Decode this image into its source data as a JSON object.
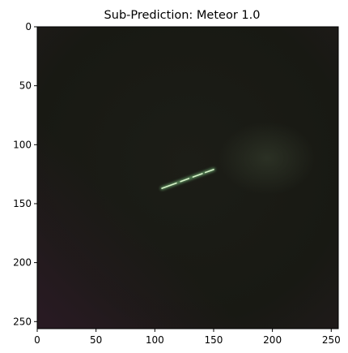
{
  "figure": {
    "title": "Sub-Prediction: Meteor 1.0",
    "image_shape": [
      256,
      256
    ],
    "x_ticks": [
      0,
      50,
      100,
      150,
      200,
      250
    ],
    "y_ticks": [
      0,
      50,
      100,
      150,
      200,
      250
    ],
    "x_tick_labels": [
      "0",
      "50",
      "100",
      "150",
      "200",
      "250"
    ],
    "y_tick_labels": [
      "0",
      "50",
      "100",
      "150",
      "200",
      "250"
    ],
    "image": {
      "subject": "night sky with a faint meteor streak",
      "background_color": "#191a14",
      "corner_color": "#221a1f",
      "glow_color": "#2a2e24",
      "streak_color": "#d6f2c8",
      "streak_glow_color": "#6fae72",
      "streak_start": [
        106,
        137
      ],
      "streak_end": [
        150,
        121
      ]
    }
  }
}
